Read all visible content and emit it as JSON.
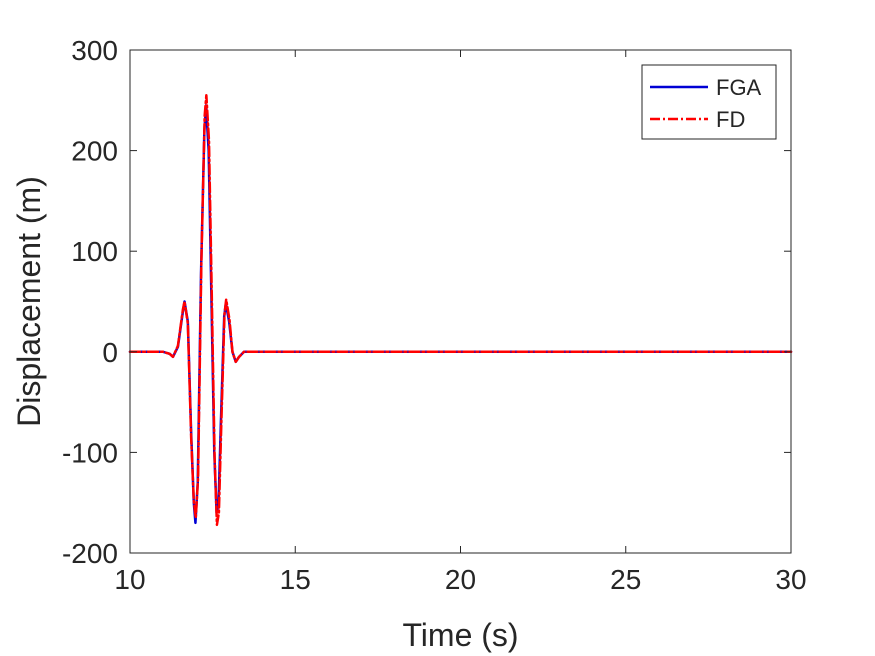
{
  "chart_data": {
    "type": "line",
    "xlabel": "Time (s)",
    "ylabel": "Displacement (m)",
    "xlim": [
      10,
      30
    ],
    "ylim": [
      -200,
      300
    ],
    "x_ticks": [
      "10",
      "15",
      "20",
      "25",
      "30"
    ],
    "y_ticks": [
      "-200",
      "-100",
      "0",
      "100",
      "200",
      "300"
    ],
    "grid": false,
    "legend_position": "top-right",
    "series": [
      {
        "name": "FGA",
        "color": "#0000d4",
        "style": "solid",
        "x": [
          10,
          11.0,
          11.2,
          11.3,
          11.45,
          11.6,
          11.65,
          11.75,
          11.85,
          11.93,
          11.98,
          12.05,
          12.15,
          12.25,
          12.3,
          12.38,
          12.46,
          12.55,
          12.62,
          12.68,
          12.75,
          12.85,
          12.9,
          13.0,
          13.1,
          13.2,
          13.3,
          13.45,
          14,
          30
        ],
        "y": [
          0,
          0,
          -2,
          -5,
          5,
          40,
          50,
          30,
          -80,
          -150,
          -170,
          -130,
          80,
          220,
          245,
          200,
          60,
          -100,
          -160,
          -150,
          -70,
          35,
          48,
          30,
          0,
          -10,
          -5,
          0,
          0,
          0
        ]
      },
      {
        "name": "FD",
        "color": "#ff0000",
        "style": "dashdot",
        "x": [
          10,
          11.0,
          11.2,
          11.3,
          11.45,
          11.6,
          11.65,
          11.75,
          11.85,
          11.93,
          11.99,
          12.06,
          12.16,
          12.26,
          12.31,
          12.39,
          12.47,
          12.56,
          12.63,
          12.69,
          12.76,
          12.86,
          12.91,
          13.01,
          13.1,
          13.2,
          13.3,
          13.45,
          14,
          30
        ],
        "y": [
          0,
          0,
          -2,
          -5,
          6,
          42,
          50,
          28,
          -85,
          -148,
          -165,
          -125,
          90,
          235,
          255,
          210,
          65,
          -105,
          -172,
          -160,
          -75,
          38,
          52,
          32,
          0,
          -10,
          -5,
          0,
          0,
          0
        ]
      }
    ]
  }
}
